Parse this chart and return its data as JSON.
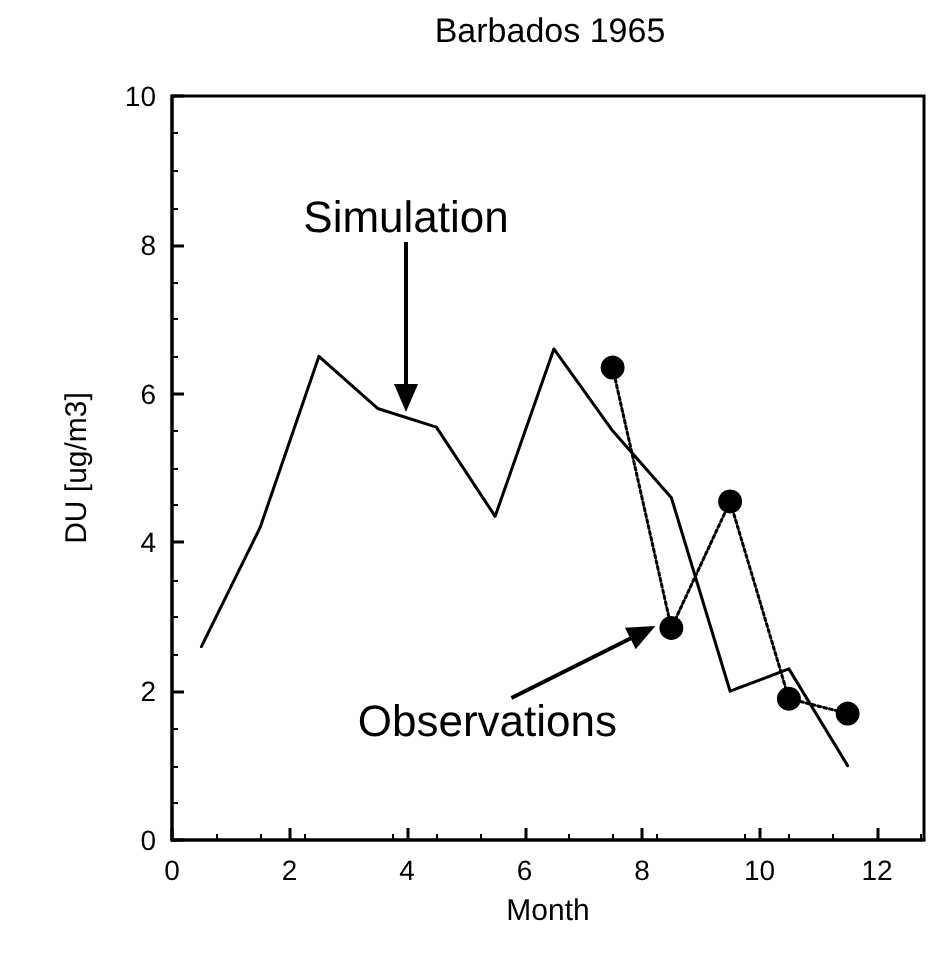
{
  "chart_data": {
    "type": "line",
    "title": "Barbados 1965",
    "xlabel": "Month",
    "ylabel": "DU [ug/m3]",
    "xlim": [
      0,
      12.8
    ],
    "xticks": [
      0,
      2,
      4,
      6,
      8,
      10,
      12
    ],
    "ylim": [
      0,
      10
    ],
    "yticks": [
      0,
      2,
      4,
      6,
      8,
      10
    ],
    "grid": false,
    "series": [
      {
        "color": "#000000",
        "marker": "none",
        "line_style": "solid",
        "x": [
          0.5,
          1.5,
          2.5,
          3.5,
          4.5,
          5.5,
          6.5,
          7.5,
          8.5,
          9.5,
          10.5,
          11.5
        ],
        "values": [
          2.6,
          4.2,
          6.5,
          5.8,
          5.55,
          4.35,
          6.6,
          5.5,
          4.6,
          2.0,
          2.3,
          1.0
        ]
      },
      {
        "color": "#000000",
        "marker": "circle",
        "line_style": "dotted",
        "x": [
          7.5,
          8.5,
          9.5,
          10.5,
          11.5
        ],
        "values": [
          6.35,
          2.85,
          4.55,
          1.9,
          1.7
        ]
      }
    ],
    "annotations": [
      "Simulation",
      {
        "text": "Observations",
        "x": 8.5,
        "y": 2.85
      }
    ]
  }
}
